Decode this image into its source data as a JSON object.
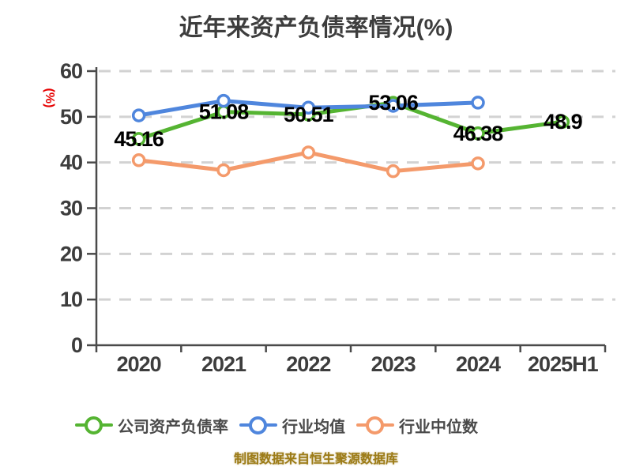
{
  "footer": "制图数据来自恒生聚源数据库",
  "colors": {
    "background": "#ffffff",
    "title": "#3d3d3d",
    "tick": "#3d3d3d",
    "axis": "#4a4a4a",
    "grid": "#d2d2d2",
    "data_label": "#000000",
    "ylabel": "#e60000",
    "legend_text": "#4a4a4a",
    "footer": "#9c7b17",
    "point_fill": "#ffffff"
  },
  "chart_data": {
    "type": "line",
    "title": "近年来资产负债率情况(%)",
    "xlabel": "",
    "ylabel": "(%)",
    "categories": [
      "2020",
      "2021",
      "2022",
      "2023",
      "2024",
      "2025H1"
    ],
    "series": [
      {
        "key": "company-debt-ratio",
        "name": "公司资产负债率",
        "color": "#55b432",
        "values": [
          45.16,
          51.08,
          50.51,
          53.06,
          46.38,
          48.9
        ],
        "labels": [
          "45.16",
          "51.08",
          "50.51",
          "53.06",
          "46.38",
          "48.9"
        ],
        "show_labels": true
      },
      {
        "key": "industry-average",
        "name": "行业均值",
        "color": "#4f86dd",
        "values": [
          50.3,
          53.5,
          52.0,
          52.4,
          53.1,
          null
        ],
        "show_labels": false
      },
      {
        "key": "industry-median",
        "name": "行业中位数",
        "color": "#f49a6b",
        "values": [
          40.5,
          38.3,
          42.2,
          38.1,
          39.8,
          null
        ],
        "show_labels": false
      }
    ],
    "ylim": [
      0,
      60
    ],
    "yticks": [
      0,
      10,
      20,
      30,
      40,
      50,
      60
    ],
    "grid": "horizontal-dashed",
    "legend_position": "bottom"
  }
}
